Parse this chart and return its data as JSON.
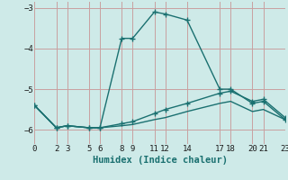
{
  "xlabel": "Humidex (Indice chaleur)",
  "background_color": "#ceeae8",
  "grid_color": "#c8a0a0",
  "line_color": "#1a7070",
  "series": [
    {
      "x": [
        0,
        2,
        3,
        5,
        6,
        8,
        9,
        11,
        12,
        14,
        17,
        18,
        20,
        21,
        23
      ],
      "y": [
        -5.4,
        -5.95,
        -5.9,
        -5.95,
        -5.95,
        -3.75,
        -3.75,
        -3.1,
        -3.15,
        -3.3,
        -5.0,
        -5.0,
        -5.35,
        -5.3,
        -5.75
      ],
      "marker": true
    },
    {
      "x": [
        0,
        2,
        3,
        5,
        6,
        8,
        9,
        11,
        12,
        14,
        17,
        18,
        20,
        21,
        23
      ],
      "y": [
        -5.4,
        -5.95,
        -5.9,
        -5.95,
        -5.95,
        -5.85,
        -5.8,
        -5.6,
        -5.5,
        -5.35,
        -5.1,
        -5.05,
        -5.3,
        -5.25,
        -5.7
      ],
      "marker": true
    },
    {
      "x": [
        0,
        2,
        3,
        5,
        6,
        8,
        9,
        11,
        12,
        14,
        17,
        18,
        20,
        21,
        23
      ],
      "y": [
        -5.4,
        -5.95,
        -5.9,
        -5.95,
        -5.95,
        -5.9,
        -5.87,
        -5.75,
        -5.7,
        -5.55,
        -5.35,
        -5.3,
        -5.55,
        -5.5,
        -5.75
      ],
      "marker": false
    }
  ],
  "xticks": [
    0,
    2,
    3,
    5,
    6,
    8,
    9,
    11,
    12,
    14,
    17,
    18,
    20,
    21,
    23
  ],
  "yticks": [
    -6,
    -5,
    -4,
    -3
  ],
  "xlim": [
    0,
    23
  ],
  "ylim": [
    -6.35,
    -2.85
  ],
  "tick_fontsize": 6.5,
  "xlabel_fontsize": 7.5
}
